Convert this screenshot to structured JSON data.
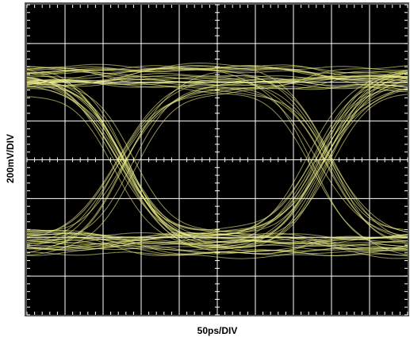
{
  "chart_data": {
    "type": "eye",
    "x_label": "50ps/DIV",
    "y_label": "200mV/DIV",
    "grid": true,
    "color": "#eef08a"
  }
}
